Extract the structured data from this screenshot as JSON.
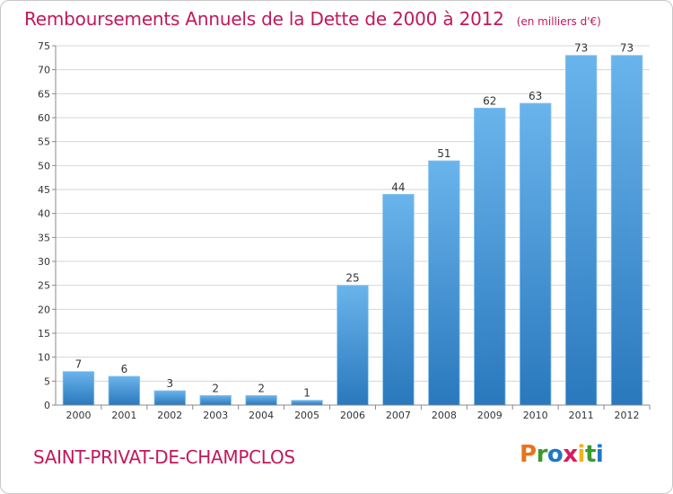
{
  "title": "Remboursements Annuels de la Dette de 2000 à 2012",
  "unit": "(en milliers d'€)",
  "commune": "SAINT-PRIVAT-DE-CHAMPCLOS",
  "logo": {
    "text": "Proxiti",
    "letters": [
      "P",
      "r",
      "o",
      "x",
      "i",
      "t",
      "i"
    ],
    "colors": [
      "#e8731a",
      "#3a9a2f",
      "#1f77c8",
      "#d81b60",
      "#f2b21a",
      "#3a9a2f",
      "#1f77c8"
    ]
  },
  "colors": {
    "title": "#c2185b",
    "bar_top": "#6ab4ec",
    "bar_bottom": "#2a78bd",
    "grid": "#d6d6d6"
  },
  "chart_data": {
    "type": "bar",
    "title": "Remboursements Annuels de la Dette de 2000 à 2012",
    "categories": [
      "2000",
      "2001",
      "2002",
      "2003",
      "2004",
      "2005",
      "2006",
      "2007",
      "2008",
      "2009",
      "2010",
      "2011",
      "2012"
    ],
    "values": [
      7,
      6,
      3,
      2,
      2,
      1,
      25,
      44,
      51,
      62,
      63,
      73,
      73
    ],
    "data_labels": [
      "7",
      "6",
      "3",
      "2",
      "2",
      "1",
      "25",
      "44",
      "51",
      "62",
      "63",
      "73",
      "73"
    ],
    "ylim": [
      0,
      75
    ],
    "yticks": [
      0,
      5,
      10,
      15,
      20,
      25,
      30,
      35,
      40,
      45,
      50,
      55,
      60,
      65,
      70,
      75
    ],
    "grid": true
  }
}
